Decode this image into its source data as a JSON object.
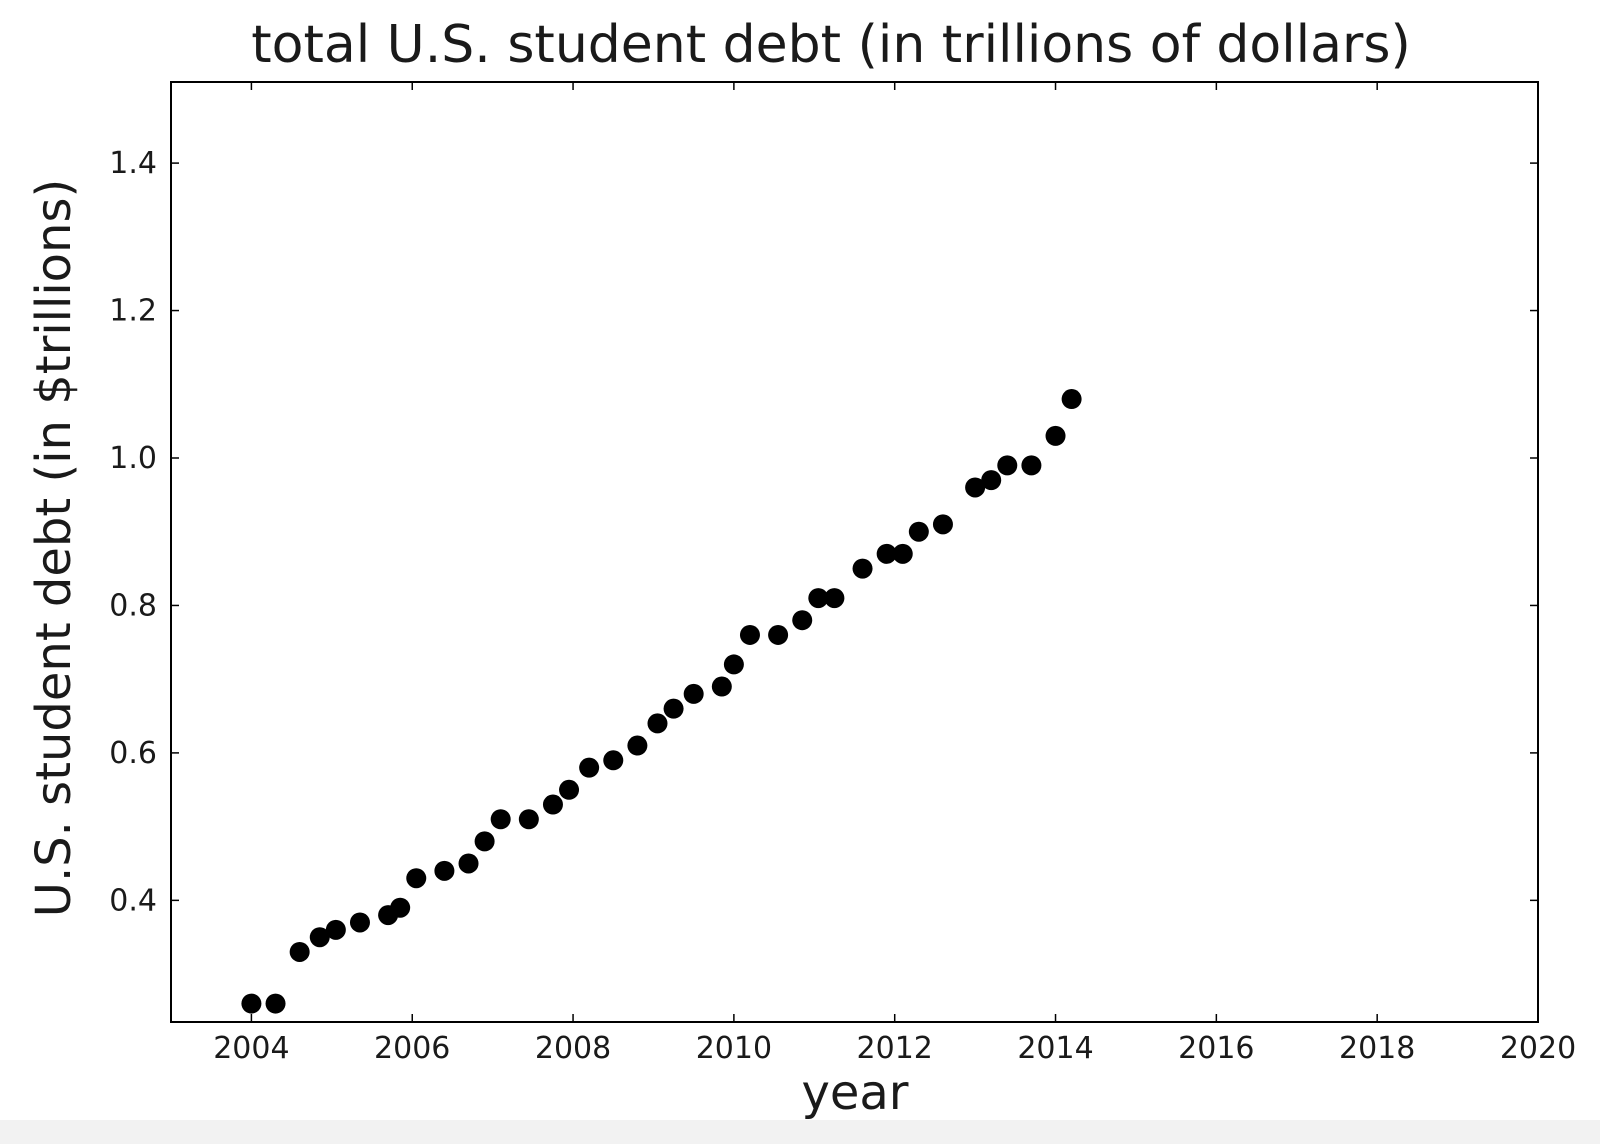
{
  "chart_data": {
    "type": "scatter",
    "title": "total U.S. student debt (in trillions of dollars)",
    "xlabel": "year",
    "ylabel": "U.S. student debt (in $trillions)",
    "xlim": [
      2003,
      2020
    ],
    "ylim": [
      0.235,
      1.51
    ],
    "xticks": [
      "2004",
      "2006",
      "2008",
      "2010",
      "2012",
      "2014",
      "2016",
      "2018",
      "2020"
    ],
    "yticks": [
      "0.4",
      "0.6",
      "0.8",
      "1.0",
      "1.2",
      "1.4"
    ],
    "grid": false,
    "marker_color": "#000000",
    "series": [
      {
        "x": [
          2004.0,
          2004.3,
          2004.6,
          2004.85,
          2005.05,
          2005.35,
          2005.7,
          2005.85,
          2006.05,
          2006.4,
          2006.7,
          2006.9,
          2007.1,
          2007.45,
          2007.75,
          2007.95,
          2008.2,
          2008.5,
          2008.8,
          2009.05,
          2009.25,
          2009.5,
          2009.85,
          2010.0,
          2010.2,
          2010.55,
          2010.85,
          2011.05,
          2011.25,
          2011.6,
          2011.9,
          2012.1,
          2012.3,
          2012.6,
          2013.0,
          2013.2,
          2013.4,
          2013.7,
          2014.0,
          2014.2
        ],
        "y": [
          0.26,
          0.26,
          0.33,
          0.35,
          0.36,
          0.37,
          0.38,
          0.39,
          0.43,
          0.44,
          0.45,
          0.48,
          0.51,
          0.51,
          0.53,
          0.55,
          0.58,
          0.59,
          0.61,
          0.64,
          0.66,
          0.68,
          0.69,
          0.72,
          0.76,
          0.76,
          0.78,
          0.81,
          0.81,
          0.85,
          0.87,
          0.87,
          0.9,
          0.91,
          0.96,
          0.97,
          0.99,
          0.99,
          1.03,
          1.08
        ]
      }
    ]
  }
}
